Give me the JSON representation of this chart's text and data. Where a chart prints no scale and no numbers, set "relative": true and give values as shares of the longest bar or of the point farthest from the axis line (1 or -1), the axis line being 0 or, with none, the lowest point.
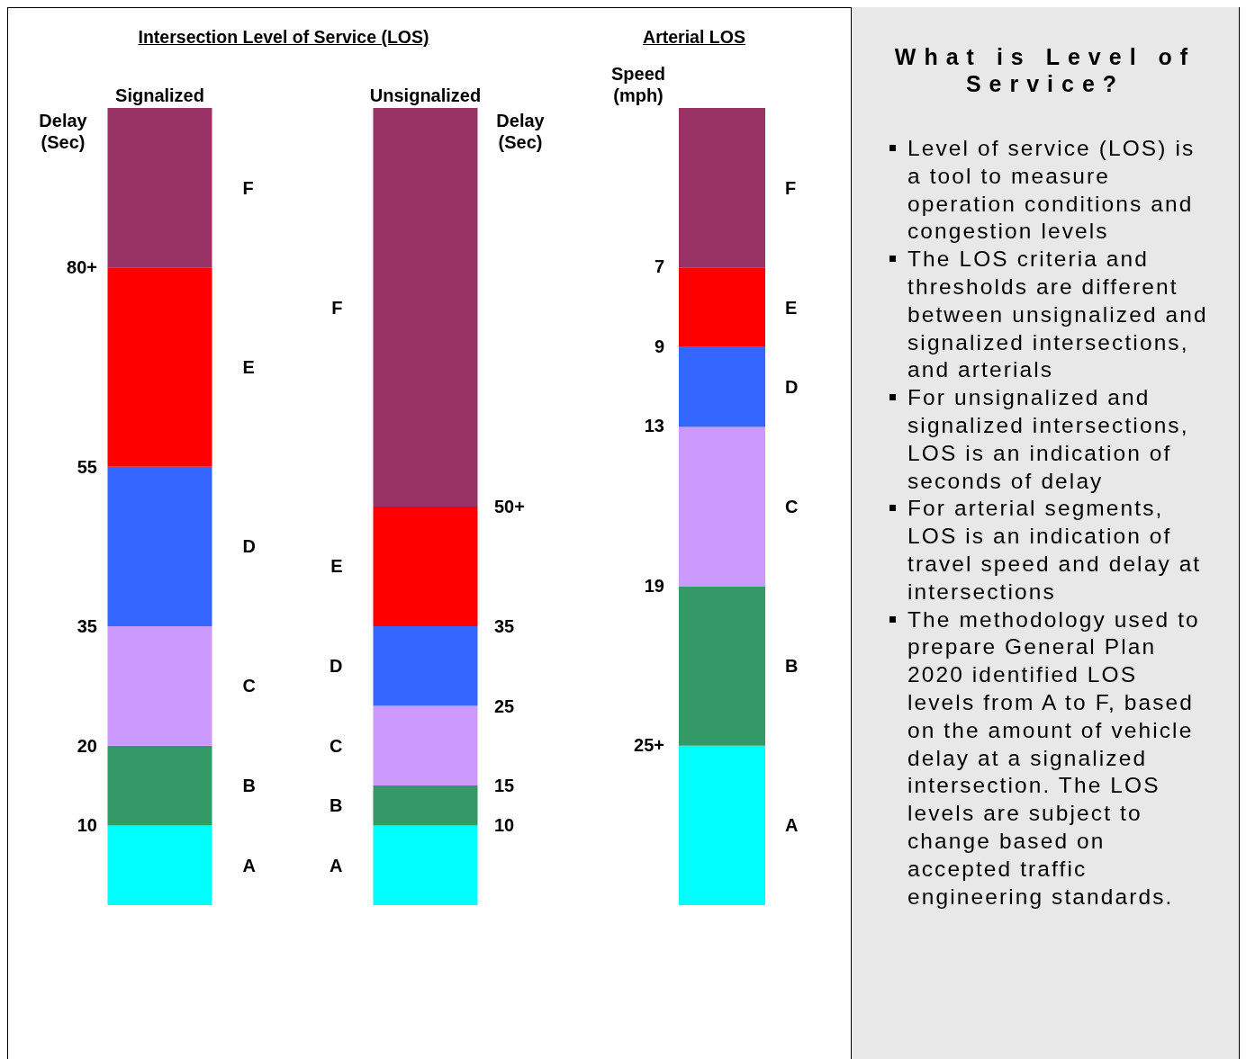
{
  "chart_data": [
    {
      "type": "bar",
      "title": "Intersection Level of Service (LOS)",
      "ylabel": "Delay\n(Sec)",
      "y2label": "Delay\n(Sec)",
      "categories": [
        "Signalized",
        "Unsignalized"
      ],
      "stacked": true,
      "ylim": [
        0,
        100
      ],
      "yticks": [
        10,
        20,
        35,
        55,
        {
          "value": 80,
          "label": "80+"
        }
      ],
      "y2lim": [
        0,
        100
      ],
      "y2ticks": [
        10,
        15,
        25,
        35,
        {
          "value": 50,
          "label": "50+"
        }
      ],
      "legend": false,
      "grid": false,
      "series": [
        {
          "name": "A",
          "color": "#00ffff",
          "values": [
            10,
            null
          ]
        },
        {
          "name": "B",
          "color": "#339966",
          "values": [
            10,
            null
          ]
        },
        {
          "name": "C",
          "color": "#cc99ff",
          "values": [
            15,
            null
          ]
        },
        {
          "name": "D",
          "color": "#3366ff",
          "values": [
            20,
            null
          ]
        },
        {
          "name": "E",
          "color": "#ff0000",
          "values": [
            25,
            null
          ]
        },
        {
          "name": "F",
          "color": "#993366",
          "values": [
            20,
            null
          ]
        },
        {
          "name": "A",
          "color": "#00ffff",
          "axis": "y2",
          "values": [
            null,
            10
          ]
        },
        {
          "name": "B",
          "color": "#339966",
          "axis": "y2",
          "values": [
            null,
            5
          ]
        },
        {
          "name": "C",
          "color": "#cc99ff",
          "axis": "y2",
          "values": [
            null,
            10
          ]
        },
        {
          "name": "D",
          "color": "#3366ff",
          "axis": "y2",
          "values": [
            null,
            10
          ]
        },
        {
          "name": "E",
          "color": "#ff0000",
          "axis": "y2",
          "values": [
            null,
            15
          ]
        },
        {
          "name": "F",
          "color": "#993366",
          "axis": "y2",
          "values": [
            null,
            50
          ]
        }
      ]
    },
    {
      "type": "bar",
      "title": "Arterial LOS",
      "ylabel": "Speed\n(mph)",
      "categories": [
        null
      ],
      "stacked": true,
      "relative": true,
      "legend": false,
      "grid": false,
      "annotations": [
        "25+",
        "19",
        "13",
        "9",
        "7"
      ],
      "series": [
        {
          "name": "A",
          "color": "#00ffff",
          "values": [
            0.2
          ]
        },
        {
          "name": "B",
          "color": "#339966",
          "values": [
            0.2
          ]
        },
        {
          "name": "C",
          "color": "#cc99ff",
          "values": [
            0.2
          ]
        },
        {
          "name": "D",
          "color": "#3366ff",
          "values": [
            0.1
          ]
        },
        {
          "name": "E",
          "color": "#ff0000",
          "values": [
            0.1
          ]
        },
        {
          "name": "F",
          "color": "#993366",
          "values": [
            0.2
          ]
        }
      ]
    },
    {
      "type": "other",
      "title": "What is Level of Service?",
      "annotations": [
        "Level of service (LOS) is a tool to measure operation conditions and congestion levels",
        "The LOS criteria and thresholds are different between unsignalized and signalized intersections, and arterials",
        "For unsignalized and signalized intersections, LOS is an indication of seconds of delay",
        "For arterial segments, LOS is an indication of travel speed and delay at intersections",
        "The methodology used to prepare General Plan 2020 identified LOS levels from A to F, based on the amount of vehicle delay at a signalized intersection.  The LOS levels are subject to change based on accepted traffic engineering standards."
      ]
    }
  ]
}
